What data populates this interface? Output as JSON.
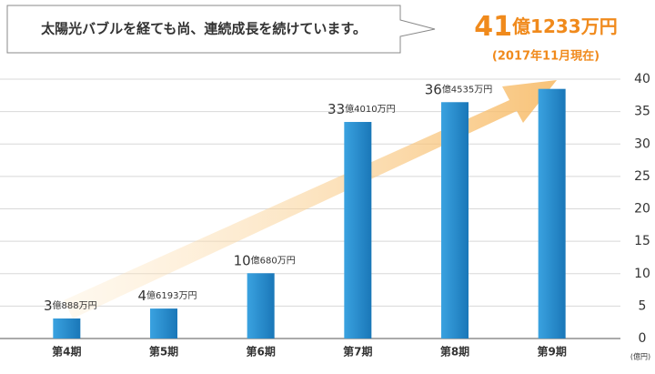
{
  "chart_data": {
    "type": "bar",
    "callout": "太陽光バブルを経ても尚、連続成長を続けています。",
    "headline": "41億1233万円",
    "headline_note": "(2017年11月現在)",
    "y_unit": "(億円)",
    "categories": [
      "第4期",
      "第5期",
      "第6期",
      "第7期",
      "第8期",
      "第9期"
    ],
    "values": [
      3.0888,
      4.6193,
      10.068,
      33.401,
      36.4535,
      38.5
    ],
    "value_labels": [
      "3億888万円",
      "4億6193万円",
      "10億680万円",
      "33億4010万円",
      "36億4535万円",
      null
    ],
    "color": "#2389c9",
    "ylim": [
      0,
      40
    ],
    "yticks": [
      0,
      5,
      10,
      15,
      20,
      25,
      30,
      35,
      40
    ],
    "grid": true
  }
}
